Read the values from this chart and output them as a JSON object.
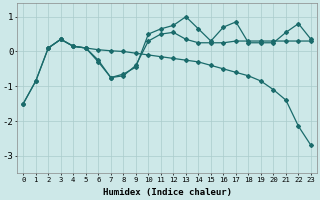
{
  "xlabel": "Humidex (Indice chaleur)",
  "background_color": "#cde8e8",
  "grid_color": "#aacccc",
  "line_color": "#1a6b6b",
  "xlim": [
    -0.5,
    23.5
  ],
  "ylim": [
    -3.5,
    1.4
  ],
  "yticks": [
    -3,
    -2,
    -1,
    0,
    1
  ],
  "xticks": [
    0,
    1,
    2,
    3,
    4,
    5,
    6,
    7,
    8,
    9,
    10,
    11,
    12,
    13,
    14,
    15,
    16,
    17,
    18,
    19,
    20,
    21,
    22,
    23
  ],
  "line1_x": [
    0,
    1,
    2,
    3,
    4,
    5,
    6,
    7,
    8,
    9,
    10,
    11,
    12,
    13,
    14,
    15,
    16,
    17,
    18,
    19,
    20,
    21,
    22,
    23
  ],
  "line1_y": [
    -1.5,
    -0.85,
    0.1,
    0.35,
    0.15,
    0.1,
    0.05,
    0.02,
    0.0,
    -0.05,
    -0.1,
    -0.15,
    -0.2,
    -0.25,
    -0.3,
    -0.4,
    -0.5,
    -0.6,
    -0.7,
    -0.85,
    -1.1,
    -1.4,
    -2.15,
    -2.7
  ],
  "line2_x": [
    0,
    1,
    2,
    3,
    4,
    5,
    6,
    7,
    8,
    9,
    10,
    11,
    12,
    13,
    14,
    15,
    16,
    17,
    18,
    19,
    20,
    21,
    22,
    23
  ],
  "line2_y": [
    -1.5,
    -0.85,
    0.1,
    0.35,
    0.15,
    0.1,
    -0.3,
    -0.75,
    -0.7,
    -0.4,
    0.3,
    0.5,
    0.55,
    0.35,
    0.25,
    0.25,
    0.25,
    0.3,
    0.3,
    0.3,
    0.3,
    0.3,
    0.3,
    0.3
  ],
  "line3_x": [
    2,
    3,
    4,
    5,
    6,
    7,
    8,
    9,
    10,
    11,
    12,
    13,
    14,
    15,
    16,
    17,
    18,
    19,
    20,
    21,
    22,
    23
  ],
  "line3_y": [
    0.1,
    0.35,
    0.15,
    0.1,
    -0.25,
    -0.75,
    -0.65,
    -0.45,
    0.5,
    0.65,
    0.75,
    1.0,
    0.65,
    0.3,
    0.7,
    0.85,
    0.25,
    0.25,
    0.25,
    0.55,
    0.8,
    0.35
  ]
}
